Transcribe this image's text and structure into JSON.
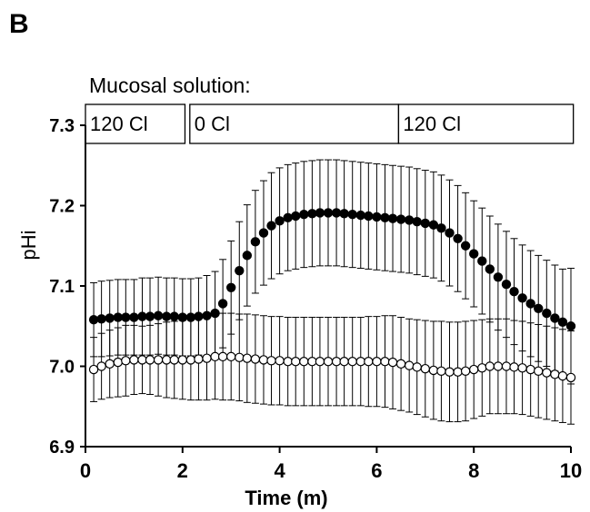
{
  "figure": {
    "panel_label": "B"
  },
  "solution": {
    "title": "Mucosal solution:",
    "segments": [
      {
        "label": "120 Cl",
        "start": 0,
        "end": 2.05
      },
      {
        "label": "0 Cl",
        "start": 2.15,
        "end": 6.45
      },
      {
        "label": "120 Cl",
        "start": 6.45,
        "end": 10.05
      }
    ]
  },
  "chart_data": {
    "type": "scatter",
    "title": "",
    "xlabel": "Time (m)",
    "ylabel": "pHi",
    "xlim": [
      0,
      10
    ],
    "ylim": [
      6.9,
      7.3
    ],
    "xticks": [
      "0",
      "2",
      "4",
      "6",
      "8",
      "10"
    ],
    "yticks": [
      "6.9",
      "7.0",
      "7.1",
      "7.2",
      "7.3"
    ],
    "grid": false,
    "error_bars": "upper and lower",
    "series": [
      {
        "marker": "filled-circle",
        "color": "#000000",
        "x": [
          0.17,
          0.33,
          0.5,
          0.67,
          0.83,
          1.0,
          1.17,
          1.33,
          1.5,
          1.67,
          1.83,
          2.0,
          2.17,
          2.33,
          2.5,
          2.67,
          2.83,
          3.0,
          3.17,
          3.33,
          3.5,
          3.67,
          3.83,
          4.0,
          4.17,
          4.33,
          4.5,
          4.67,
          4.83,
          5.0,
          5.17,
          5.33,
          5.5,
          5.67,
          5.83,
          6.0,
          6.17,
          6.33,
          6.5,
          6.67,
          6.83,
          7.0,
          7.17,
          7.33,
          7.5,
          7.67,
          7.83,
          8.0,
          8.17,
          8.33,
          8.5,
          8.67,
          8.83,
          9.0,
          9.17,
          9.33,
          9.5,
          9.67,
          9.83,
          10.0
        ],
        "y": [
          7.058,
          7.059,
          7.06,
          7.061,
          7.061,
          7.061,
          7.062,
          7.062,
          7.063,
          7.062,
          7.062,
          7.061,
          7.061,
          7.062,
          7.063,
          7.066,
          7.078,
          7.098,
          7.119,
          7.138,
          7.155,
          7.166,
          7.175,
          7.181,
          7.185,
          7.187,
          7.189,
          7.19,
          7.191,
          7.191,
          7.191,
          7.19,
          7.189,
          7.188,
          7.187,
          7.186,
          7.185,
          7.184,
          7.183,
          7.182,
          7.18,
          7.178,
          7.176,
          7.172,
          7.166,
          7.159,
          7.15,
          7.14,
          7.131,
          7.121,
          7.111,
          7.102,
          7.093,
          7.085,
          7.078,
          7.072,
          7.066,
          7.06,
          7.055,
          7.05
        ],
        "err": [
          0.046,
          0.047,
          0.047,
          0.047,
          0.047,
          0.047,
          0.048,
          0.048,
          0.048,
          0.048,
          0.048,
          0.048,
          0.048,
          0.048,
          0.05,
          0.052,
          0.055,
          0.058,
          0.061,
          0.063,
          0.064,
          0.065,
          0.066,
          0.066,
          0.066,
          0.066,
          0.066,
          0.066,
          0.066,
          0.066,
          0.066,
          0.066,
          0.066,
          0.066,
          0.066,
          0.066,
          0.066,
          0.066,
          0.066,
          0.066,
          0.066,
          0.066,
          0.066,
          0.066,
          0.066,
          0.066,
          0.066,
          0.066,
          0.066,
          0.066,
          0.066,
          0.066,
          0.066,
          0.066,
          0.066,
          0.066,
          0.066,
          0.066,
          0.066,
          0.072
        ]
      },
      {
        "marker": "open-circle",
        "color": "#000000",
        "x": [
          0.17,
          0.33,
          0.5,
          0.67,
          0.83,
          1.0,
          1.17,
          1.33,
          1.5,
          1.67,
          1.83,
          2.0,
          2.17,
          2.33,
          2.5,
          2.67,
          2.83,
          3.0,
          3.17,
          3.33,
          3.5,
          3.67,
          3.83,
          4.0,
          4.17,
          4.33,
          4.5,
          4.67,
          4.83,
          5.0,
          5.17,
          5.33,
          5.5,
          5.67,
          5.83,
          6.0,
          6.17,
          6.33,
          6.5,
          6.67,
          6.83,
          7.0,
          7.17,
          7.33,
          7.5,
          7.67,
          7.83,
          8.0,
          8.17,
          8.33,
          8.5,
          8.67,
          8.83,
          9.0,
          9.17,
          9.33,
          9.5,
          9.67,
          9.83,
          10.0
        ],
        "y": [
          6.996,
          7.0,
          7.003,
          7.005,
          7.007,
          7.008,
          7.008,
          7.008,
          7.008,
          7.008,
          7.008,
          7.008,
          7.008,
          7.009,
          7.01,
          7.012,
          7.012,
          7.012,
          7.011,
          7.01,
          7.009,
          7.008,
          7.007,
          7.007,
          7.006,
          7.006,
          7.006,
          7.006,
          7.006,
          7.006,
          7.006,
          7.006,
          7.006,
          7.006,
          7.006,
          7.006,
          7.006,
          7.005,
          7.003,
          7.001,
          6.999,
          6.997,
          6.995,
          6.994,
          6.993,
          6.993,
          6.994,
          6.996,
          6.998,
          7.0,
          7.0,
          7.0,
          6.999,
          6.998,
          6.996,
          6.994,
          6.992,
          6.99,
          6.988,
          6.986
        ],
        "err": [
          0.04,
          0.041,
          0.042,
          0.043,
          0.044,
          0.043,
          0.042,
          0.043,
          0.045,
          0.047,
          0.048,
          0.049,
          0.05,
          0.051,
          0.052,
          0.053,
          0.054,
          0.054,
          0.054,
          0.055,
          0.055,
          0.055,
          0.055,
          0.055,
          0.055,
          0.055,
          0.055,
          0.055,
          0.055,
          0.055,
          0.055,
          0.055,
          0.055,
          0.055,
          0.056,
          0.056,
          0.057,
          0.058,
          0.058,
          0.058,
          0.059,
          0.06,
          0.061,
          0.062,
          0.062,
          0.062,
          0.062,
          0.061,
          0.06,
          0.059,
          0.059,
          0.059,
          0.058,
          0.058,
          0.058,
          0.058,
          0.058,
          0.058,
          0.058,
          0.058
        ]
      }
    ]
  }
}
